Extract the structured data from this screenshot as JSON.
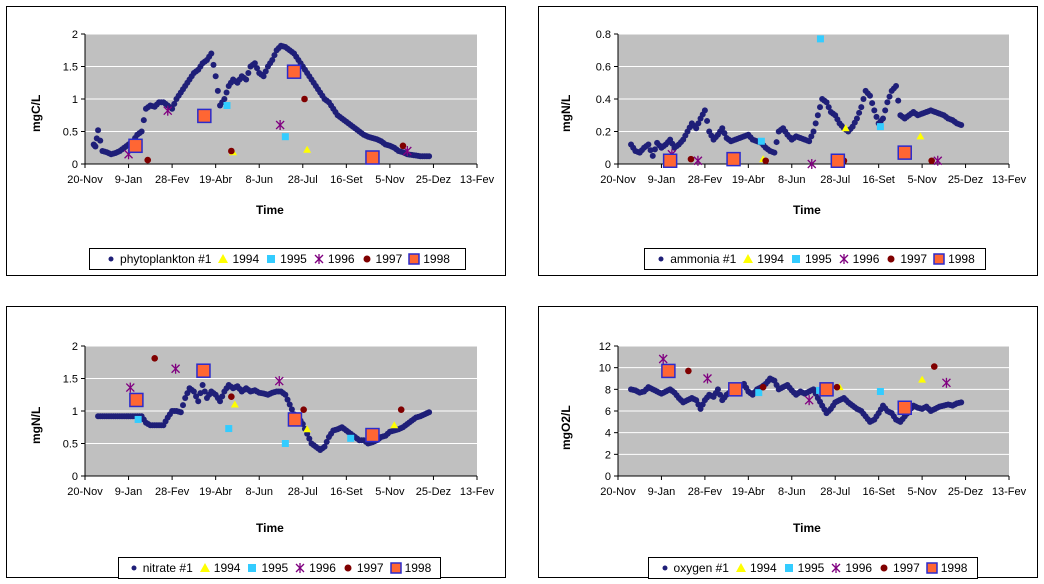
{
  "colors": {
    "plot_bg": "#c0c0c0",
    "grid": "#ffffff",
    "main_series": "#1f1f78",
    "y1994": "#ffff00",
    "y1995": "#33ccff",
    "y1996": "#800080",
    "y1997": "#800000",
    "y1998_fill": "#ff6633",
    "y1998_edge": "#2b2bcc"
  },
  "x_ticks": [
    "20-Nov",
    "9-Jan",
    "28-Fev",
    "19-Abr",
    "8-Jun",
    "28-Jul",
    "16-Set",
    "5-Nov",
    "25-Dez",
    "13-Fev"
  ],
  "x_title": "Time",
  "legend_years": [
    "1994",
    "1995",
    "1996",
    "1997",
    "1998"
  ],
  "chart_data": [
    {
      "type": "scatter",
      "panel": "phytoplankton",
      "ylabel": "mgC/L",
      "xlabel": "Time",
      "ylim": [
        0,
        2
      ],
      "yticks": [
        "0",
        "0.5",
        "1",
        "1.5",
        "2"
      ],
      "legend_first": "phytoplankton  #1",
      "series": [
        {
          "name": "phytoplankton  #1",
          "x": [
            10,
            12,
            15,
            20,
            25,
            30,
            35,
            40,
            45,
            50,
            55,
            60,
            65,
            70,
            75,
            80,
            85,
            90,
            95,
            100,
            105,
            110,
            115,
            120,
            125,
            130,
            135,
            140,
            145,
            150,
            155,
            160,
            165,
            170,
            175,
            180,
            185,
            190,
            195,
            200,
            205,
            210,
            215,
            220,
            225,
            230,
            235,
            240,
            245,
            250,
            255,
            260,
            265,
            270,
            275,
            280,
            285,
            290,
            295,
            300,
            305,
            310,
            315,
            320,
            325,
            330,
            335,
            340,
            345,
            350,
            355,
            360,
            365,
            370,
            375,
            380,
            385,
            390,
            395
          ],
          "y": [
            0.3,
            0.27,
            0.52,
            0.2,
            0.18,
            0.15,
            0.17,
            0.2,
            0.25,
            0.3,
            0.35,
            0.45,
            0.5,
            0.85,
            0.9,
            0.88,
            0.95,
            0.95,
            0.9,
            0.85,
            1.0,
            1.1,
            1.2,
            1.3,
            1.4,
            1.45,
            1.55,
            1.6,
            1.7,
            1.35,
            0.9,
            1.0,
            1.2,
            1.3,
            1.25,
            1.35,
            1.3,
            1.5,
            1.55,
            1.4,
            1.35,
            1.5,
            1.6,
            1.75,
            1.82,
            1.8,
            1.75,
            1.7,
            1.6,
            1.5,
            1.4,
            1.3,
            1.2,
            1.1,
            1.0,
            0.95,
            0.85,
            0.75,
            0.7,
            0.65,
            0.6,
            0.55,
            0.5,
            0.45,
            0.42,
            0.4,
            0.38,
            0.35,
            0.3,
            0.28,
            0.25,
            0.2,
            0.18,
            0.15,
            0.14,
            0.13,
            0.12,
            0.12,
            0.12
          ]
        },
        {
          "name": "1994",
          "x": [
            170,
            255
          ],
          "y": [
            0.18,
            0.22
          ]
        },
        {
          "name": "1995",
          "x": [
            163,
            230
          ],
          "y": [
            0.9,
            0.42
          ]
        },
        {
          "name": "1996",
          "x": [
            50,
            95,
            224,
            370
          ],
          "y": [
            0.15,
            0.82,
            0.6,
            0.2
          ]
        },
        {
          "name": "1997",
          "x": [
            72,
            168,
            252,
            365
          ],
          "y": [
            0.06,
            0.2,
            1.0,
            0.28
          ]
        },
        {
          "name": "1998",
          "x": [
            58,
            137,
            240,
            330
          ],
          "y": [
            0.28,
            0.74,
            1.42,
            0.1
          ]
        }
      ]
    },
    {
      "type": "scatter",
      "panel": "ammonia",
      "ylabel": "mgN/L",
      "xlabel": "Time",
      "ylim": [
        0,
        0.8
      ],
      "yticks": [
        "0",
        "0.2",
        "0.4",
        "0.6",
        "0.8"
      ],
      "legend_first": "ammonia  #1",
      "series": [
        {
          "name": "ammonia  #1",
          "x": [
            15,
            20,
            25,
            30,
            35,
            40,
            45,
            50,
            55,
            60,
            65,
            70,
            75,
            80,
            85,
            90,
            95,
            100,
            105,
            110,
            115,
            120,
            125,
            130,
            135,
            140,
            145,
            150,
            155,
            160,
            165,
            170,
            175,
            180,
            185,
            190,
            195,
            200,
            205,
            210,
            215,
            220,
            225,
            230,
            235,
            240,
            245,
            250,
            255,
            260,
            265,
            270,
            275,
            280,
            285,
            290,
            295,
            300,
            305,
            310,
            315,
            320,
            325,
            330,
            335,
            340,
            345,
            350,
            355,
            360,
            365,
            370,
            375,
            380,
            385,
            390,
            395
          ],
          "y": [
            0.12,
            0.08,
            0.07,
            0.1,
            0.12,
            0.05,
            0.13,
            0.1,
            0.12,
            0.15,
            0.1,
            0.12,
            0.15,
            0.2,
            0.25,
            0.22,
            0.28,
            0.33,
            0.2,
            0.15,
            0.18,
            0.22,
            0.16,
            0.14,
            0.15,
            0.16,
            0.17,
            0.18,
            0.15,
            0.14,
            0.13,
            0.1,
            0.08,
            0.07,
            0.2,
            0.22,
            0.18,
            0.15,
            0.17,
            0.16,
            0.15,
            0.14,
            0.2,
            0.3,
            0.4,
            0.38,
            0.32,
            0.3,
            0.25,
            0.22,
            0.2,
            0.23,
            0.28,
            0.35,
            0.45,
            0.42,
            0.33,
            0.25,
            0.28,
            0.38,
            0.45,
            0.48,
            0.3,
            0.28,
            0.3,
            0.32,
            0.3,
            0.31,
            0.32,
            0.33,
            0.32,
            0.31,
            0.3,
            0.28,
            0.27,
            0.25,
            0.24
          ]
        },
        {
          "name": "1994",
          "x": [
            167,
            262,
            348
          ],
          "y": [
            0.03,
            0.22,
            0.17
          ]
        },
        {
          "name": "1995",
          "x": [
            165,
            233,
            302
          ],
          "y": [
            0.14,
            0.77,
            0.23
          ]
        },
        {
          "name": "1996",
          "x": [
            62,
            92,
            223,
            368
          ],
          "y": [
            0.06,
            0.02,
            0.0,
            0.02
          ]
        },
        {
          "name": "1997",
          "x": [
            84,
            170,
            260,
            361
          ],
          "y": [
            0.03,
            0.02,
            0.02,
            0.02
          ]
        },
        {
          "name": "1998",
          "x": [
            60,
            133,
            253,
            330
          ],
          "y": [
            0.02,
            0.03,
            0.02,
            0.07
          ]
        }
      ]
    },
    {
      "type": "scatter",
      "panel": "nitrate",
      "ylabel": "mgN/L",
      "xlabel": "Time",
      "ylim": [
        0,
        2
      ],
      "yticks": [
        "0",
        "0.5",
        "1",
        "1.5",
        "2"
      ],
      "legend_first": "nitrate  #1",
      "series": [
        {
          "name": "nitrate  #1",
          "x": [
            15,
            20,
            25,
            30,
            35,
            40,
            45,
            50,
            55,
            60,
            65,
            70,
            75,
            80,
            85,
            90,
            95,
            100,
            105,
            110,
            115,
            120,
            125,
            130,
            135,
            140,
            145,
            150,
            155,
            160,
            165,
            170,
            175,
            180,
            185,
            190,
            195,
            200,
            205,
            210,
            215,
            220,
            225,
            230,
            235,
            240,
            245,
            250,
            255,
            260,
            265,
            270,
            275,
            280,
            285,
            290,
            295,
            300,
            305,
            310,
            315,
            320,
            325,
            330,
            335,
            340,
            345,
            350,
            355,
            360,
            365,
            370,
            375,
            380,
            385,
            390,
            395
          ],
          "y": [
            0.92,
            0.92,
            0.92,
            0.92,
            0.92,
            0.92,
            0.92,
            0.92,
            0.92,
            0.92,
            0.92,
            0.82,
            0.78,
            0.78,
            0.78,
            0.78,
            0.9,
            1.0,
            1.0,
            0.98,
            1.2,
            1.35,
            1.3,
            1.15,
            1.4,
            1.2,
            1.3,
            1.25,
            1.15,
            1.3,
            1.4,
            1.35,
            1.38,
            1.3,
            1.35,
            1.3,
            1.32,
            1.28,
            1.27,
            1.25,
            1.28,
            1.3,
            1.3,
            1.25,
            1.1,
            0.95,
            0.9,
            0.8,
            0.65,
            0.5,
            0.45,
            0.4,
            0.45,
            0.6,
            0.7,
            0.72,
            0.75,
            0.7,
            0.65,
            0.6,
            0.55,
            0.55,
            0.5,
            0.52,
            0.55,
            0.6,
            0.62,
            0.68,
            0.7,
            0.72,
            0.75,
            0.8,
            0.85,
            0.9,
            0.92,
            0.95,
            0.98
          ]
        },
        {
          "name": "1994",
          "x": [
            172,
            255,
            355
          ],
          "y": [
            1.1,
            0.72,
            0.78
          ]
        },
        {
          "name": "1995",
          "x": [
            61,
            165,
            230,
            305
          ],
          "y": [
            0.87,
            0.73,
            0.5,
            0.58
          ]
        },
        {
          "name": "1996",
          "x": [
            52,
            104,
            223
          ],
          "y": [
            1.36,
            1.65,
            1.46
          ]
        },
        {
          "name": "1997",
          "x": [
            80,
            168,
            251,
            363
          ],
          "y": [
            1.81,
            1.22,
            1.02,
            1.02
          ]
        },
        {
          "name": "1998",
          "x": [
            59,
            136,
            241,
            330
          ],
          "y": [
            1.17,
            1.62,
            0.87,
            0.63
          ]
        }
      ]
    },
    {
      "type": "scatter",
      "panel": "oxygen",
      "ylabel": "mgO2/L",
      "xlabel": "Time",
      "ylim": [
        0,
        12
      ],
      "yticks": [
        "0",
        "2",
        "4",
        "6",
        "8",
        "10",
        "12"
      ],
      "legend_first": "oxygen  #1",
      "series": [
        {
          "name": "oxygen  #1",
          "x": [
            15,
            20,
            25,
            30,
            35,
            40,
            45,
            50,
            55,
            60,
            65,
            70,
            75,
            80,
            85,
            90,
            95,
            100,
            105,
            110,
            115,
            120,
            125,
            130,
            135,
            140,
            145,
            150,
            155,
            160,
            165,
            170,
            175,
            180,
            185,
            190,
            195,
            200,
            205,
            210,
            215,
            220,
            225,
            230,
            235,
            240,
            245,
            250,
            255,
            260,
            265,
            270,
            275,
            280,
            285,
            290,
            295,
            300,
            305,
            310,
            315,
            320,
            325,
            330,
            335,
            340,
            345,
            350,
            355,
            360,
            365,
            370,
            375,
            380,
            385,
            390,
            395
          ],
          "y": [
            8.0,
            7.9,
            7.7,
            7.8,
            8.2,
            8.0,
            7.8,
            7.6,
            7.8,
            8.0,
            7.7,
            7.2,
            6.8,
            7.0,
            7.2,
            7.0,
            6.2,
            7.0,
            7.5,
            7.3,
            8.0,
            7.0,
            7.5,
            7.8,
            8.0,
            8.2,
            8.5,
            7.8,
            7.5,
            8.0,
            8.2,
            8.5,
            9.0,
            8.8,
            8.0,
            8.2,
            8.4,
            7.9,
            7.5,
            7.8,
            7.6,
            7.8,
            8.0,
            7.2,
            6.5,
            5.8,
            6.2,
            6.8,
            7.0,
            7.2,
            6.8,
            6.5,
            6.2,
            6.0,
            5.5,
            5.0,
            5.2,
            5.8,
            6.5,
            6.0,
            5.8,
            5.2,
            5.0,
            5.5,
            6.0,
            6.5,
            6.3,
            6.2,
            6.4,
            6.0,
            6.2,
            6.4,
            6.5,
            6.6,
            6.5,
            6.7,
            6.8
          ]
        },
        {
          "name": "1994",
          "x": [
            255,
            350
          ],
          "y": [
            8.2,
            8.9
          ]
        },
        {
          "name": "1995",
          "x": [
            162,
            232,
            302
          ],
          "y": [
            7.7,
            7.9,
            7.8
          ]
        },
        {
          "name": "1996",
          "x": [
            52,
            103,
            220,
            378
          ],
          "y": [
            10.8,
            9.0,
            7.0,
            8.6
          ]
        },
        {
          "name": "1997",
          "x": [
            81,
            167,
            252,
            364
          ],
          "y": [
            9.7,
            8.2,
            8.2,
            10.1
          ]
        },
        {
          "name": "1998",
          "x": [
            58,
            135,
            240,
            330
          ],
          "y": [
            9.7,
            8.0,
            8.0,
            6.3
          ]
        }
      ]
    }
  ]
}
